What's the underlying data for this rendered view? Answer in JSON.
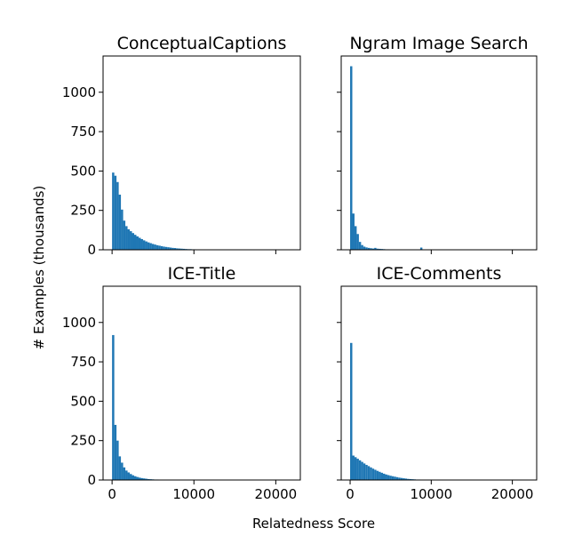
{
  "figure": {
    "ylabel": "# Examples (thousands)",
    "xlabel": "Relatedness Score"
  },
  "chart_data": [
    {
      "type": "bar",
      "title": "ConceptualCaptions",
      "xlim": [
        -1100,
        23000
      ],
      "ylim": [
        0,
        1230
      ],
      "xticks": [
        0,
        10000,
        20000
      ],
      "yticks": [
        0,
        250,
        500,
        750,
        1000
      ],
      "bin_width": 270,
      "bins": [
        [
          0,
          490
        ],
        [
          270,
          470
        ],
        [
          540,
          430
        ],
        [
          810,
          350
        ],
        [
          1080,
          255
        ],
        [
          1350,
          185
        ],
        [
          1620,
          150
        ],
        [
          1890,
          130
        ],
        [
          2160,
          118
        ],
        [
          2430,
          106
        ],
        [
          2700,
          95
        ],
        [
          2970,
          85
        ],
        [
          3240,
          76
        ],
        [
          3510,
          68
        ],
        [
          3780,
          60
        ],
        [
          4050,
          53
        ],
        [
          4320,
          47
        ],
        [
          4590,
          42
        ],
        [
          4860,
          37
        ],
        [
          5130,
          33
        ],
        [
          5400,
          29
        ],
        [
          5670,
          26
        ],
        [
          5940,
          23
        ],
        [
          6210,
          20
        ],
        [
          6480,
          18
        ],
        [
          6750,
          16
        ],
        [
          7020,
          14
        ],
        [
          7290,
          12
        ],
        [
          7560,
          11
        ],
        [
          7830,
          9
        ],
        [
          8100,
          8
        ],
        [
          8370,
          7
        ],
        [
          8640,
          6
        ],
        [
          8910,
          5
        ],
        [
          9180,
          4
        ],
        [
          9450,
          4
        ],
        [
          9720,
          3
        ],
        [
          9990,
          3
        ],
        [
          10260,
          2
        ],
        [
          10530,
          2
        ],
        [
          10800,
          2
        ],
        [
          11070,
          1
        ],
        [
          11340,
          1
        ],
        [
          11610,
          1
        ]
      ]
    },
    {
      "type": "bar",
      "title": "Ngram Image Search",
      "xlim": [
        -1100,
        23000
      ],
      "ylim": [
        0,
        1230
      ],
      "xticks": [
        0,
        10000,
        20000
      ],
      "yticks": [
        0,
        250,
        500,
        750,
        1000
      ],
      "bin_width": 270,
      "bins": [
        [
          0,
          1165
        ],
        [
          270,
          230
        ],
        [
          540,
          150
        ],
        [
          810,
          100
        ],
        [
          1080,
          50
        ],
        [
          1350,
          30
        ],
        [
          1620,
          20
        ],
        [
          1890,
          15
        ],
        [
          2160,
          12
        ],
        [
          2430,
          10
        ],
        [
          2700,
          8
        ],
        [
          2970,
          12
        ],
        [
          3240,
          7
        ],
        [
          3510,
          6
        ],
        [
          3780,
          5
        ],
        [
          4050,
          4
        ],
        [
          4320,
          3
        ],
        [
          4590,
          3
        ],
        [
          4860,
          2
        ],
        [
          5130,
          2
        ],
        [
          5400,
          2
        ],
        [
          5670,
          1
        ],
        [
          5940,
          1
        ],
        [
          6210,
          1
        ],
        [
          6480,
          1
        ],
        [
          6750,
          1
        ],
        [
          7020,
          1
        ],
        [
          7290,
          1
        ],
        [
          7560,
          1
        ],
        [
          7830,
          1
        ],
        [
          8100,
          1
        ],
        [
          8370,
          2
        ],
        [
          8640,
          14
        ],
        [
          8910,
          1
        ]
      ]
    },
    {
      "type": "bar",
      "title": "ICE-Title",
      "xlim": [
        -1100,
        23000
      ],
      "ylim": [
        0,
        1230
      ],
      "xticks": [
        0,
        10000,
        20000
      ],
      "yticks": [
        0,
        250,
        500,
        750,
        1000
      ],
      "bin_width": 270,
      "bins": [
        [
          0,
          920
        ],
        [
          270,
          350
        ],
        [
          540,
          250
        ],
        [
          810,
          150
        ],
        [
          1080,
          110
        ],
        [
          1350,
          80
        ],
        [
          1620,
          60
        ],
        [
          1890,
          48
        ],
        [
          2160,
          38
        ],
        [
          2430,
          30
        ],
        [
          2700,
          24
        ],
        [
          2970,
          19
        ],
        [
          3240,
          15
        ],
        [
          3510,
          12
        ],
        [
          3780,
          10
        ],
        [
          4050,
          8
        ],
        [
          4320,
          6
        ],
        [
          4590,
          5
        ],
        [
          4860,
          4
        ],
        [
          5130,
          3
        ],
        [
          5400,
          3
        ],
        [
          5670,
          2
        ],
        [
          5940,
          2
        ],
        [
          6210,
          1
        ],
        [
          6480,
          1
        ],
        [
          6750,
          1
        ],
        [
          7020,
          1
        ],
        [
          7290,
          1
        ]
      ]
    },
    {
      "type": "bar",
      "title": "ICE-Comments",
      "xlim": [
        -1100,
        23000
      ],
      "ylim": [
        0,
        1230
      ],
      "xticks": [
        0,
        10000,
        20000
      ],
      "yticks": [
        0,
        250,
        500,
        750,
        1000
      ],
      "bin_width": 270,
      "bins": [
        [
          0,
          870
        ],
        [
          270,
          155
        ],
        [
          540,
          145
        ],
        [
          810,
          135
        ],
        [
          1080,
          125
        ],
        [
          1350,
          115
        ],
        [
          1620,
          105
        ],
        [
          1890,
          96
        ],
        [
          2160,
          88
        ],
        [
          2430,
          80
        ],
        [
          2700,
          72
        ],
        [
          2970,
          65
        ],
        [
          3240,
          58
        ],
        [
          3510,
          52
        ],
        [
          3780,
          46
        ],
        [
          4050,
          40
        ],
        [
          4320,
          35
        ],
        [
          4590,
          31
        ],
        [
          4860,
          27
        ],
        [
          5130,
          24
        ],
        [
          5400,
          21
        ],
        [
          5670,
          18
        ],
        [
          5940,
          15
        ],
        [
          6210,
          13
        ],
        [
          6480,
          11
        ],
        [
          6750,
          9
        ],
        [
          7020,
          7
        ],
        [
          7290,
          6
        ],
        [
          7560,
          5
        ],
        [
          7830,
          4
        ],
        [
          8100,
          3
        ],
        [
          8370,
          3
        ],
        [
          8640,
          2
        ],
        [
          8910,
          2
        ],
        [
          9180,
          1
        ],
        [
          9450,
          1
        ],
        [
          9720,
          1
        ]
      ]
    }
  ]
}
